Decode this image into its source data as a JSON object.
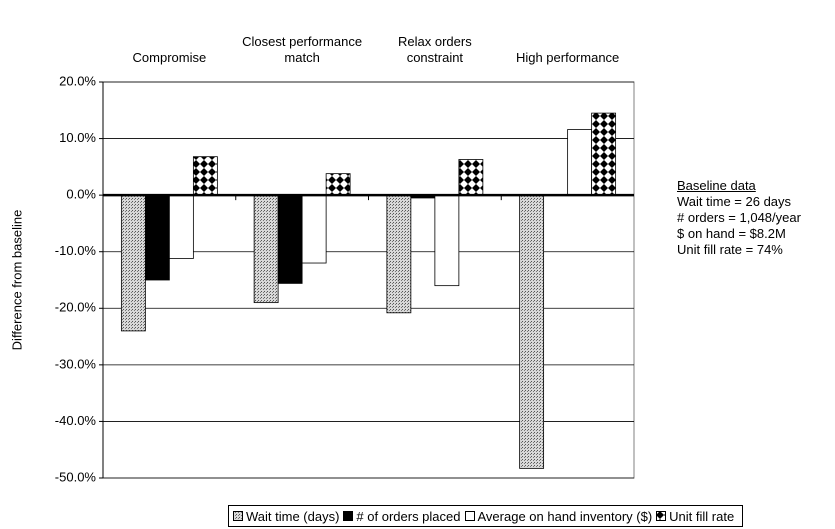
{
  "chart_data": {
    "type": "bar",
    "ylabel": "Difference from baseline",
    "categories": [
      "Compromise",
      "Closest performance match",
      "Relax orders constraint",
      "High performance"
    ],
    "series": [
      {
        "name": "Wait time (days)",
        "color": "#a8a8a8",
        "pattern": "dots",
        "values": [
          -24,
          -19,
          -20.8,
          -48.3
        ]
      },
      {
        "name": "# of orders placed",
        "color": "#000000",
        "pattern": "solid",
        "values": [
          -15,
          -15.6,
          -0.5,
          0
        ]
      },
      {
        "name": "Average on hand inventory ($)",
        "color": "#ffffff",
        "pattern": "solid",
        "values": [
          -11.2,
          -12,
          -16,
          11.6
        ]
      },
      {
        "name": "Unit fill rate",
        "color": "#000000",
        "pattern": "checker",
        "values": [
          6.8,
          3.8,
          6.3,
          14.5
        ]
      }
    ],
    "ylim": [
      -50,
      20
    ],
    "yticks": [
      {
        "value": -50,
        "label": "-50.0%"
      },
      {
        "value": -40,
        "label": "-40.0%"
      },
      {
        "value": -30,
        "label": "-30.0%"
      },
      {
        "value": -20,
        "label": "-20.0%"
      },
      {
        "value": -10,
        "label": "-10.0%"
      },
      {
        "value": 0,
        "label": "0.0%"
      },
      {
        "value": 10,
        "label": "10.0%"
      },
      {
        "value": 20,
        "label": "20.0%"
      }
    ],
    "grid": true,
    "annotations": [
      "Baseline data",
      "Wait time = 26 days",
      "# orders = 1,048/year",
      "$ on hand = $8.2M",
      "Unit fill rate = 74%"
    ]
  }
}
